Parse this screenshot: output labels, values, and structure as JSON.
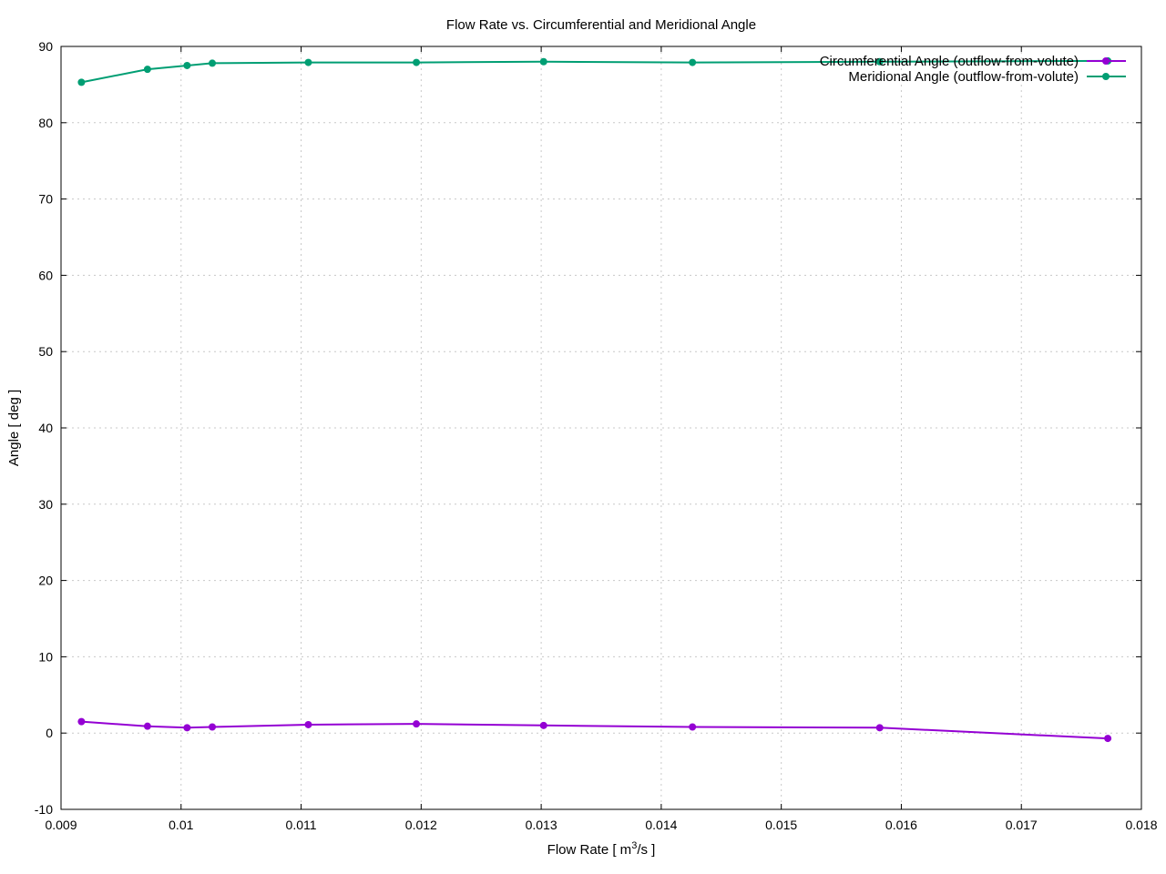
{
  "chart_data": {
    "type": "line",
    "title": "Flow Rate vs. Circumferential and Meridional Angle",
    "xlabel_main": "Flow Rate [ m",
    "xlabel_sup": "3",
    "xlabel_tail": "/s ]",
    "ylabel": "Angle [ deg ]",
    "xlim": [
      0.009,
      0.018
    ],
    "ylim": [
      -10,
      90
    ],
    "xticks": [
      0.009,
      0.01,
      0.011,
      0.012,
      0.013,
      0.014,
      0.015,
      0.016,
      0.017,
      0.018
    ],
    "xtick_labels": [
      "0.009",
      "0.01",
      "0.011",
      "0.012",
      "0.013",
      "0.014",
      "0.015",
      "0.016",
      "0.017",
      "0.018"
    ],
    "yticks": [
      -10,
      0,
      10,
      20,
      30,
      40,
      50,
      60,
      70,
      80,
      90
    ],
    "ytick_labels": [
      "-10",
      "0",
      "10",
      "20",
      "30",
      "40",
      "50",
      "60",
      "70",
      "80",
      "90"
    ],
    "grid": true,
    "legend_position": "top-right",
    "series": [
      {
        "name": "Circumferential Angle (outflow-from-volute)",
        "color": "#9400d3",
        "x": [
          0.00917,
          0.00972,
          0.01005,
          0.01026,
          0.01106,
          0.01196,
          0.01302,
          0.01426,
          0.01582,
          0.01772
        ],
        "y": [
          1.5,
          0.9,
          0.7,
          0.8,
          1.1,
          1.2,
          1.0,
          0.8,
          0.7,
          -0.7
        ]
      },
      {
        "name": "Meridional Angle (outflow-from-volute)",
        "color": "#009e73",
        "x": [
          0.00917,
          0.00972,
          0.01005,
          0.01026,
          0.01106,
          0.01196,
          0.01302,
          0.01426,
          0.01582,
          0.01772
        ],
        "y": [
          85.3,
          87.0,
          87.5,
          87.8,
          87.9,
          87.9,
          88.0,
          87.9,
          88.0,
          88.1
        ]
      }
    ]
  }
}
